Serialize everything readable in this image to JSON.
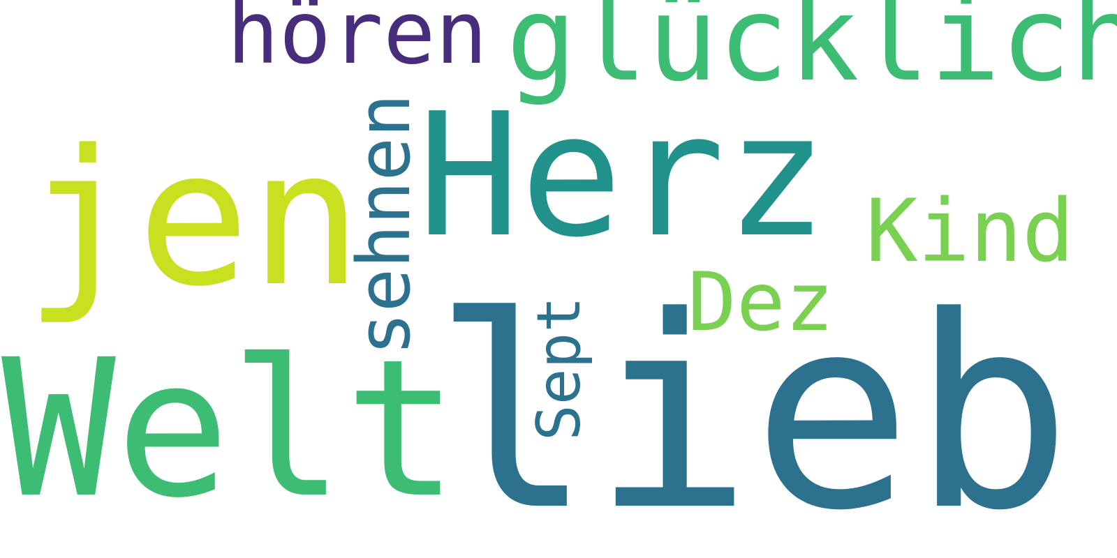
{
  "words": {
    "lieb": {
      "text": "lieb",
      "color": "#2c728e"
    },
    "welt": {
      "text": "Welt",
      "color": "#3dbc74"
    },
    "herz": {
      "text": "Herz",
      "color": "#21918c"
    },
    "jen": {
      "text": "jen",
      "color": "#c8e020"
    },
    "gluecklich": {
      "text": "glücklich",
      "color": "#3dbc74"
    },
    "hoeren": {
      "text": "hören",
      "color": "#472d7b"
    },
    "sehnen": {
      "text": "sehnen",
      "color": "#2c728e"
    },
    "kind": {
      "text": "Kind",
      "color": "#7ad151"
    },
    "dez": {
      "text": "Dez",
      "color": "#7ad151"
    },
    "sept": {
      "text": "Sept",
      "color": "#2c728e"
    }
  }
}
